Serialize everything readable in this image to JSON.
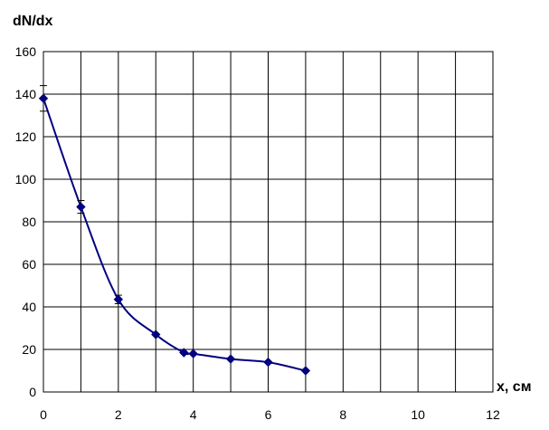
{
  "chart_data": {
    "type": "line",
    "title": "",
    "xlabel": "x, см",
    "ylabel": "dN/dx",
    "xlim": [
      0,
      12
    ],
    "ylim": [
      0,
      160
    ],
    "xticks": [
      0,
      2,
      4,
      6,
      8,
      10,
      12
    ],
    "yticks": [
      0,
      20,
      40,
      60,
      80,
      100,
      120,
      140,
      160
    ],
    "x_gridlines": [
      0,
      1,
      2,
      3,
      4,
      5,
      6,
      7,
      8,
      9,
      10,
      11,
      12
    ],
    "y_gridlines": [
      0,
      20,
      40,
      60,
      80,
      100,
      120,
      140,
      160
    ],
    "grid": true,
    "legend": "none",
    "series": [
      {
        "color": "#000080",
        "marker": "diamond",
        "smooth": true,
        "x": [
          0,
          1,
          2,
          3,
          3.75,
          4,
          5,
          6,
          7
        ],
        "y": [
          138,
          87,
          43.5,
          27,
          18.5,
          18,
          15.5,
          14,
          10
        ],
        "error_y": [
          6,
          3,
          2,
          0,
          0,
          0,
          0,
          0,
          0
        ]
      }
    ]
  }
}
